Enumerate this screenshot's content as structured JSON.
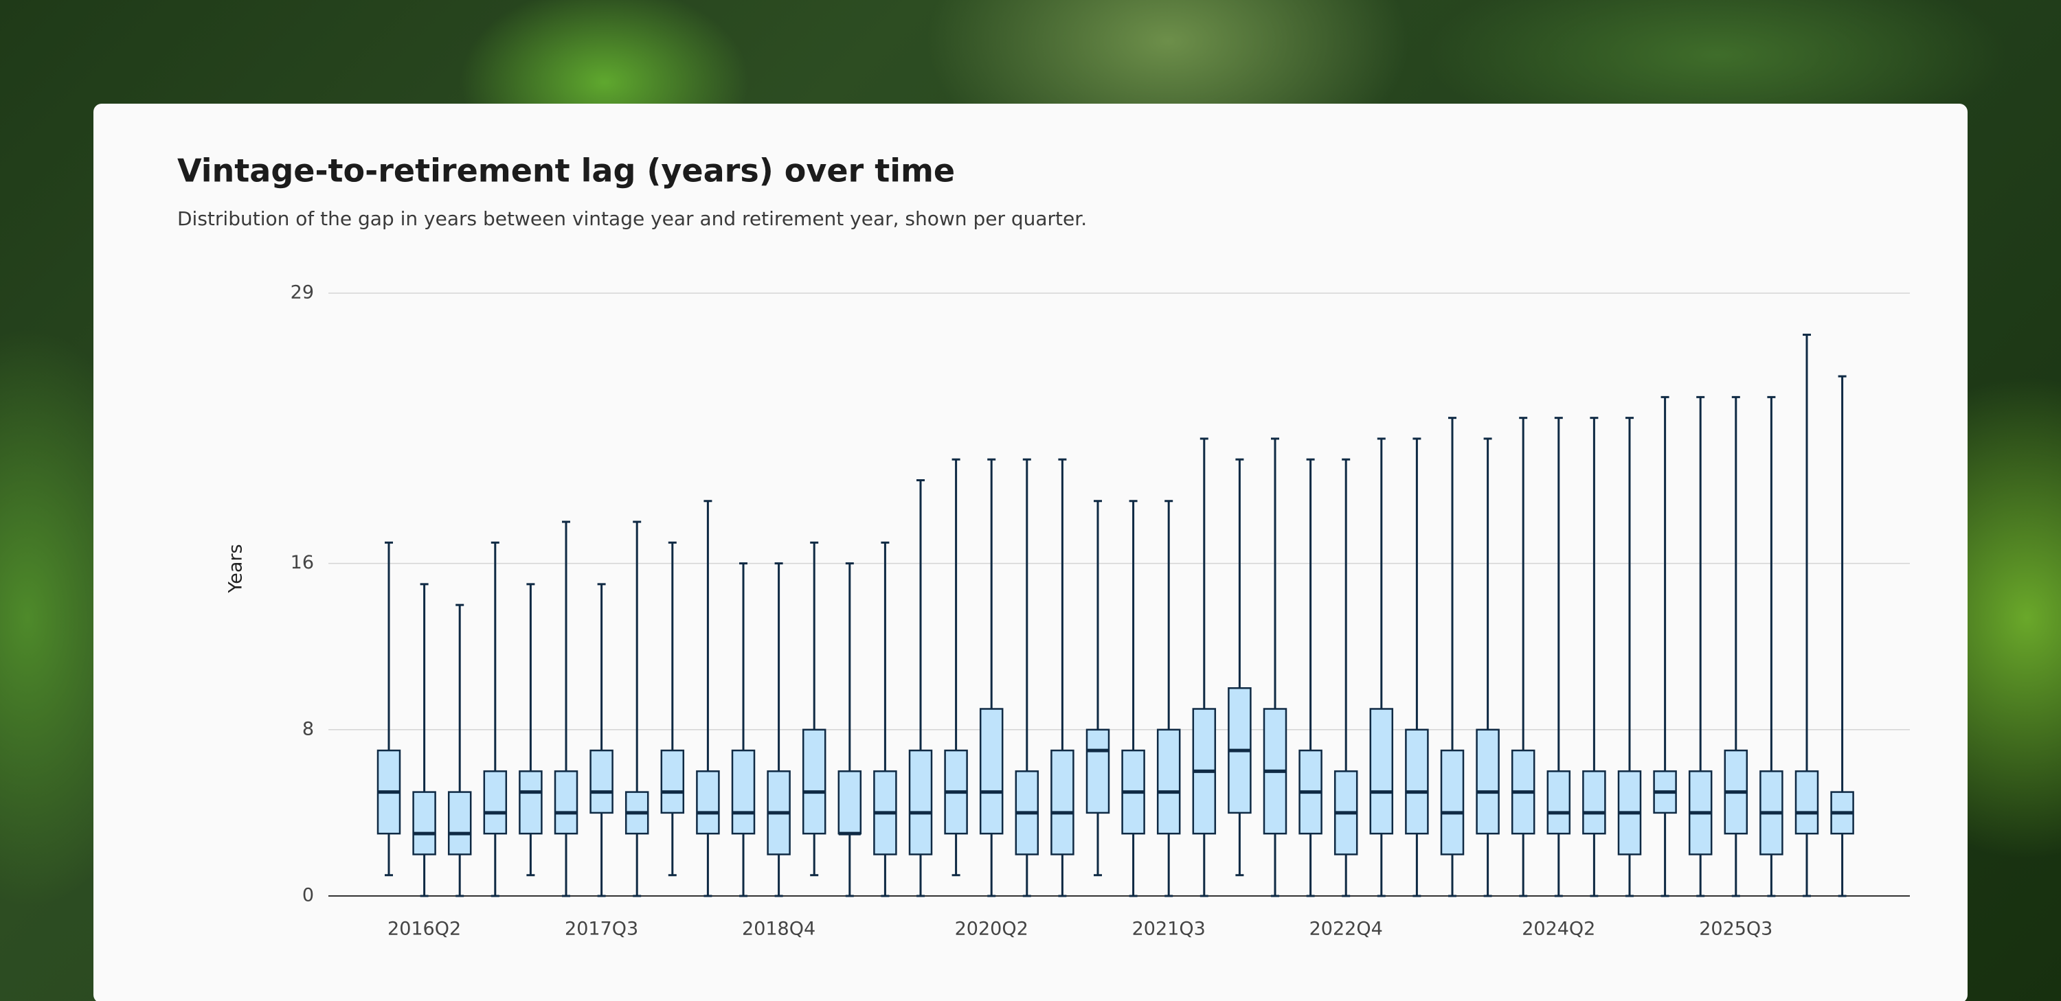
{
  "chart_data": {
    "type": "box",
    "title": "Vintage-to-retirement lag (years) over time",
    "subtitle": "Distribution of the gap in years between vintage year and retirement year, shown per quarter.",
    "y_label": "Years",
    "categories": [
      null,
      "2016Q2",
      null,
      null,
      null,
      null,
      "2017Q3",
      null,
      null,
      null,
      null,
      "2018Q4",
      null,
      null,
      null,
      null,
      null,
      "2020Q2",
      null,
      null,
      null,
      null,
      "2021Q3",
      null,
      null,
      null,
      null,
      "2022Q4",
      null,
      null,
      null,
      null,
      null,
      "2024Q2",
      null,
      null,
      null,
      null,
      "2025Q3",
      null,
      null,
      null
    ],
    "min": [
      1,
      0,
      0,
      0,
      1,
      0,
      0,
      0,
      1,
      0,
      0,
      0,
      1,
      0,
      0,
      0,
      1,
      0,
      0,
      0,
      1,
      0,
      0,
      0,
      1,
      0,
      0,
      0,
      0,
      0,
      0,
      0,
      0,
      0,
      0,
      0,
      0,
      0,
      0,
      0,
      0,
      0
    ],
    "q1": [
      3,
      2,
      2,
      3,
      3,
      3,
      4,
      3,
      4,
      3,
      3,
      2,
      3,
      3,
      2,
      2,
      3,
      3,
      2,
      2,
      4,
      3,
      3,
      3,
      4,
      3,
      3,
      2,
      3,
      3,
      2,
      3,
      3,
      3,
      3,
      2,
      4,
      2,
      3,
      2,
      3,
      3
    ],
    "median": [
      5,
      3,
      3,
      4,
      5,
      4,
      5,
      4,
      5,
      4,
      4,
      4,
      5,
      3,
      4,
      4,
      5,
      5,
      4,
      4,
      7,
      5,
      5,
      6,
      7,
      6,
      5,
      4,
      5,
      5,
      4,
      5,
      5,
      4,
      4,
      4,
      5,
      4,
      5,
      4,
      4,
      4
    ],
    "q3": [
      7,
      5,
      5,
      6,
      6,
      6,
      7,
      5,
      7,
      6,
      7,
      6,
      8,
      6,
      6,
      7,
      7,
      9,
      6,
      7,
      8,
      7,
      8,
      9,
      10,
      9,
      7,
      6,
      9,
      8,
      7,
      8,
      7,
      6,
      6,
      6,
      6,
      6,
      7,
      6,
      6,
      5
    ],
    "max": [
      17,
      15,
      14,
      17,
      15,
      18,
      15,
      18,
      17,
      19,
      16,
      16,
      17,
      16,
      17,
      20,
      21,
      21,
      21,
      21,
      19,
      19,
      19,
      22,
      21,
      22,
      21,
      21,
      22,
      22,
      23,
      22,
      23,
      23,
      23,
      23,
      24,
      24,
      24,
      24,
      27,
      25
    ],
    "box_color": "#bfe3fb",
    "line_color": "#0f2a44",
    "ylim": [
      0,
      29
    ],
    "yticks": [
      0,
      8,
      16,
      29
    ],
    "grid": true
  }
}
